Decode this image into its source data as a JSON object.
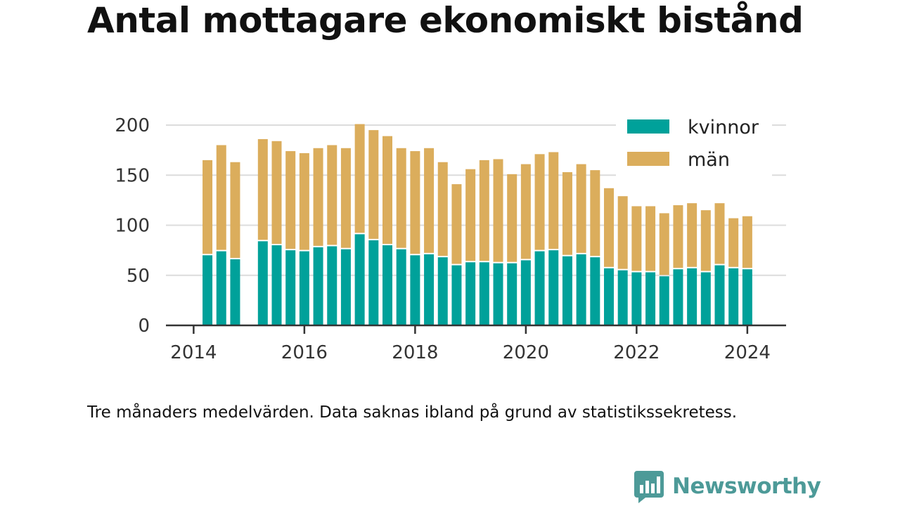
{
  "title": "Antal mottagare ekonomiskt bistånd",
  "caption": "Tre månaders medelvärden. Data saknas ibland på grund av statistikssekretess.",
  "brand": {
    "name": "Newsworthy",
    "icon": "newsworthy-logo-icon",
    "color": "#4d9a98"
  },
  "chart_data": {
    "type": "bar",
    "stacked": true,
    "title": "Antal mottagare ekonomiskt bistånd",
    "xlabel": "",
    "ylabel": "",
    "ylim": [
      0,
      200
    ],
    "xlim": [
      2013.5,
      2024.7
    ],
    "yticks": [
      "0",
      "50",
      "100",
      "150",
      "200"
    ],
    "xticks": [
      "2014",
      "2016",
      "2018",
      "2020",
      "2022",
      "2024"
    ],
    "grid": true,
    "legend_position": "top-right",
    "x": [
      2014.25,
      2014.5,
      2014.75,
      2015.25,
      2015.5,
      2015.75,
      2016.0,
      2016.25,
      2016.5,
      2016.75,
      2017.0,
      2017.25,
      2017.5,
      2017.75,
      2018.0,
      2018.25,
      2018.5,
      2018.75,
      2019.0,
      2019.25,
      2019.5,
      2019.75,
      2020.0,
      2020.25,
      2020.5,
      2020.75,
      2021.0,
      2021.25,
      2021.5,
      2021.75,
      2022.0,
      2022.25,
      2022.5,
      2022.75,
      2023.0,
      2023.25,
      2023.5,
      2023.75,
      2024.0
    ],
    "series": [
      {
        "name": "kvinnor",
        "color": "#00a19a",
        "values": [
          70,
          74,
          66,
          84,
          80,
          75,
          74,
          78,
          79,
          76,
          91,
          85,
          80,
          76,
          70,
          71,
          68,
          60,
          63,
          63,
          62,
          62,
          65,
          74,
          75,
          69,
          71,
          68,
          57,
          55,
          53,
          53,
          49,
          56,
          57,
          53,
          60,
          57,
          56
        ]
      },
      {
        "name": "män",
        "color": "#dbad5c",
        "values": [
          95,
          106,
          97,
          102,
          104,
          99,
          98,
          99,
          101,
          101,
          110,
          110,
          109,
          101,
          104,
          106,
          95,
          81,
          93,
          102,
          104,
          89,
          96,
          97,
          98,
          84,
          90,
          87,
          80,
          74,
          66,
          66,
          63,
          64,
          65,
          62,
          62,
          50,
          53
        ]
      }
    ]
  }
}
